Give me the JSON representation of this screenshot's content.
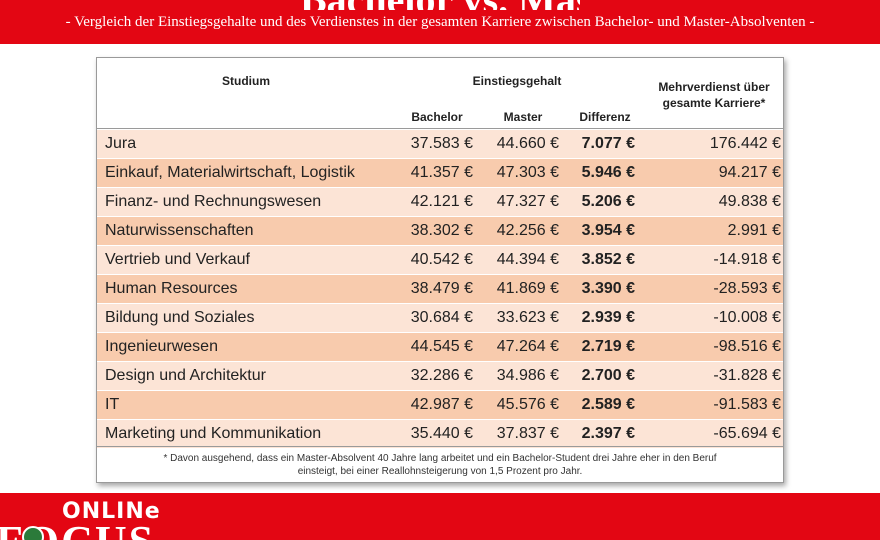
{
  "header": {
    "title_fragment": "Bachelor vs. Master",
    "subtitle": "- Vergleich der Einstiegsgehalte und des Verdienstes in der gesamten Karriere zwischen Bachelor- und Master-Absolventen -"
  },
  "table": {
    "col_studium": "Studium",
    "col_einstieg": "Einstiegsgehalt",
    "col_bachelor": "Bachelor",
    "col_master": "Master",
    "col_differenz": "Differenz",
    "col_mehr_line1": "Mehrverdienst über",
    "col_mehr_line2": "gesamte Karriere*",
    "rows": [
      {
        "studium": "Jura",
        "bachelor": "37.583 €",
        "master": "44.660 €",
        "differenz": "7.077 €",
        "mehr": "176.442 €"
      },
      {
        "studium": "Einkauf, Materialwirtschaft, Logistik",
        "bachelor": "41.357 €",
        "master": "47.303 €",
        "differenz": "5.946 €",
        "mehr": "94.217 €"
      },
      {
        "studium": "Finanz- und Rechnungswesen",
        "bachelor": "42.121 €",
        "master": "47.327 €",
        "differenz": "5.206 €",
        "mehr": "49.838 €"
      },
      {
        "studium": "Naturwissenschaften",
        "bachelor": "38.302 €",
        "master": "42.256 €",
        "differenz": "3.954 €",
        "mehr": "2.991 €"
      },
      {
        "studium": "Vertrieb und Verkauf",
        "bachelor": "40.542 €",
        "master": "44.394 €",
        "differenz": "3.852 €",
        "mehr": "-14.918 €"
      },
      {
        "studium": "Human Resources",
        "bachelor": "38.479 €",
        "master": "41.869 €",
        "differenz": "3.390 €",
        "mehr": "-28.593 €"
      },
      {
        "studium": "Bildung und Soziales",
        "bachelor": "30.684 €",
        "master": "33.623 €",
        "differenz": "2.939 €",
        "mehr": "-10.008 €"
      },
      {
        "studium": "Ingenieurwesen",
        "bachelor": "44.545 €",
        "master": "47.264 €",
        "differenz": "2.719 €",
        "mehr": "-98.516 €"
      },
      {
        "studium": "Design und Architektur",
        "bachelor": "32.286 €",
        "master": "34.986 €",
        "differenz": "2.700 €",
        "mehr": "-31.828 €"
      },
      {
        "studium": "IT",
        "bachelor": "42.987 €",
        "master": "45.576 €",
        "differenz": "2.589 €",
        "mehr": "-91.583 €"
      },
      {
        "studium": "Marketing und Kommunikation",
        "bachelor": "35.440 €",
        "master": "37.837 €",
        "differenz": "2.397 €",
        "mehr": "-65.694 €"
      }
    ],
    "footnote_line1": "* Davon ausgehend, dass ein Master-Absolvent 40 Jahre lang arbeitet und ein Bachelor-Student drei Jahre eher in den Beruf",
    "footnote_line2": "einsteigt, bei einer Reallohnsteigerung von 1,5 Prozent pro Jahr."
  },
  "footer": {
    "online_label": "ONLINe",
    "brand": "FOCUS"
  },
  "colors": {
    "brand_red": "#e30613",
    "row_light": "#fce4d6",
    "row_dark": "#f8cbad"
  }
}
